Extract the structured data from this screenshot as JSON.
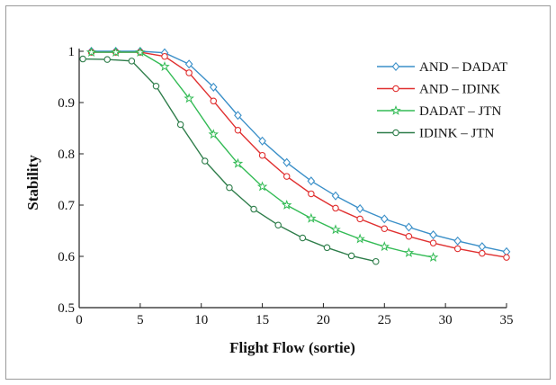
{
  "chart_data": {
    "type": "line",
    "title": "",
    "xlabel": "Flight Flow (sortie)",
    "ylabel": "Stability",
    "xlim": [
      0,
      35
    ],
    "ylim": [
      0.5,
      1
    ],
    "x_ticks": [
      0,
      5,
      10,
      15,
      20,
      25,
      30,
      35
    ],
    "y_ticks": [
      0.5,
      0.6,
      0.7,
      0.8,
      0.9,
      1
    ],
    "y_tick_labels": [
      "0.5",
      "0.6",
      "0.7",
      "0.8",
      "0.9",
      "1"
    ],
    "grid": false,
    "legend_position": "top-right",
    "series": [
      {
        "name": "AND – DADAT",
        "color": "#3a8fc8",
        "marker": "diamond",
        "x": [
          1,
          3,
          5,
          7,
          9,
          11,
          13,
          15,
          17,
          19,
          21,
          23,
          25,
          27,
          29,
          31,
          33,
          35
        ],
        "y": [
          1.0,
          1.0,
          1.0,
          0.997,
          0.975,
          0.93,
          0.875,
          0.825,
          0.783,
          0.747,
          0.718,
          0.693,
          0.673,
          0.657,
          0.642,
          0.63,
          0.619,
          0.609
        ]
      },
      {
        "name": "AND – IDINK",
        "color": "#e03030",
        "marker": "circle",
        "x": [
          1,
          3,
          5,
          7,
          9,
          11,
          13,
          15,
          17,
          19,
          21,
          23,
          25,
          27,
          29,
          31,
          33,
          35
        ],
        "y": [
          0.998,
          0.998,
          0.998,
          0.99,
          0.958,
          0.903,
          0.846,
          0.797,
          0.756,
          0.722,
          0.694,
          0.673,
          0.654,
          0.639,
          0.626,
          0.615,
          0.606,
          0.598
        ]
      },
      {
        "name": "DADAT – JTN",
        "color": "#33bb55",
        "marker": "star",
        "x": [
          1,
          3,
          5,
          7,
          9,
          11,
          13,
          15,
          17,
          19,
          21,
          23,
          25,
          27,
          29
        ],
        "y": [
          0.998,
          0.998,
          0.998,
          0.97,
          0.908,
          0.838,
          0.781,
          0.736,
          0.7,
          0.674,
          0.652,
          0.634,
          0.619,
          0.607,
          0.598
        ]
      },
      {
        "name": "IDINK – JTN",
        "color": "#2e7d4a",
        "marker": "circle",
        "x": [
          0.3,
          2.3,
          4.3,
          6.3,
          8.3,
          10.3,
          12.3,
          14.3,
          16.3,
          18.3,
          20.3,
          22.3,
          24.3
        ],
        "y": [
          0.985,
          0.984,
          0.981,
          0.932,
          0.857,
          0.786,
          0.734,
          0.692,
          0.661,
          0.636,
          0.617,
          0.601,
          0.59
        ]
      }
    ]
  }
}
